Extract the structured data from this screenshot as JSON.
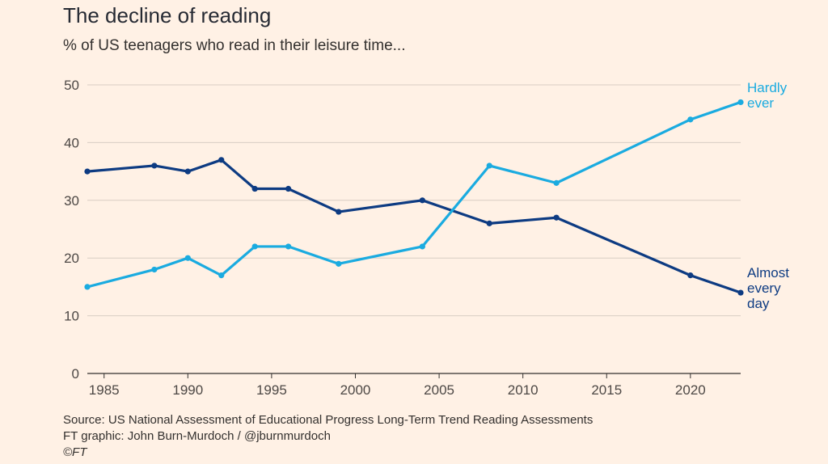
{
  "header": {
    "title": "The decline of reading",
    "subtitle": "% of US teenagers who read in their leisure time..."
  },
  "footer": {
    "source": "Source: US National Assessment of Educational Progress Long-Term Trend Reading Assessments",
    "credit": "FT graphic: John Burn-Murdoch / @jburnmurdoch",
    "copyright": "©FT"
  },
  "colors": {
    "background": "#fff1e5",
    "hardly_ever": "#1aabe0",
    "almost_every_day": "#0d3b82",
    "grid": "#d8cdc3",
    "baseline": "#33302e"
  },
  "chart_data": {
    "type": "line",
    "title": "The decline of reading",
    "subtitle": "% of US teenagers who read in their leisure time...",
    "xlabel": "",
    "ylabel": "",
    "xlim": [
      1984,
      2023
    ],
    "ylim": [
      0,
      50
    ],
    "x_ticks": [
      1985,
      1990,
      1995,
      2000,
      2005,
      2010,
      2015,
      2020
    ],
    "y_ticks": [
      0,
      10,
      20,
      30,
      40,
      50
    ],
    "grid": true,
    "series": [
      {
        "name": "Almost every day",
        "label_lines": [
          "Almost",
          "every",
          "day"
        ],
        "color": "#0d3b82",
        "x": [
          1984,
          1988,
          1990,
          1992,
          1994,
          1996,
          1999,
          2004,
          2008,
          2012,
          2020,
          2023
        ],
        "values": [
          35,
          36,
          35,
          37,
          32,
          32,
          28,
          30,
          26,
          27,
          17,
          14
        ]
      },
      {
        "name": "Hardly ever",
        "label_lines": [
          "Hardly",
          "ever"
        ],
        "color": "#1aabe0",
        "x": [
          1984,
          1988,
          1990,
          1992,
          1994,
          1996,
          1999,
          2004,
          2008,
          2012,
          2020,
          2023
        ],
        "values": [
          15,
          18,
          20,
          17,
          22,
          22,
          19,
          22,
          36,
          33,
          44,
          47
        ]
      }
    ]
  }
}
